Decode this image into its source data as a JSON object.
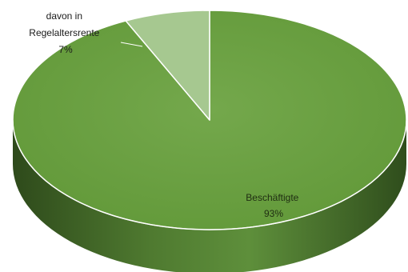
{
  "chart_data": {
    "type": "pie",
    "style": "3d-pie",
    "slices": [
      {
        "name": "Beschäftigte",
        "value": 93,
        "label_lines": [
          "Beschäftigte",
          "93%"
        ],
        "color": "#6ea348",
        "side_color_light": "#5c8e38",
        "side_color_dark": "#2f4f1c"
      },
      {
        "name": "davon in Regelaltersrente",
        "value": 7,
        "label_lines": [
          "davon in",
          "Regelaltersrente",
          "7%"
        ],
        "color": "#a6c890",
        "side_color_light": "#94b980",
        "side_color_dark": "#6d9157"
      }
    ],
    "legend": "none"
  }
}
